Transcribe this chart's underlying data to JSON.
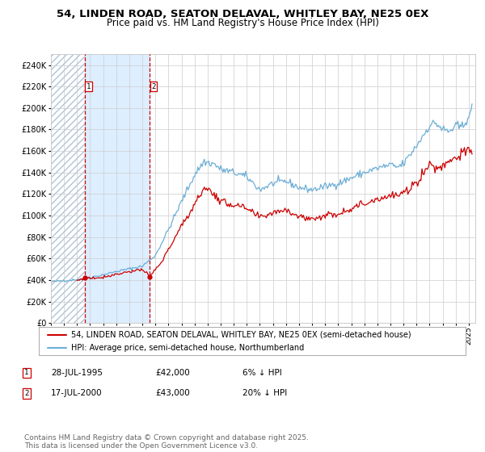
{
  "title": "54, LINDEN ROAD, SEATON DELAVAL, WHITLEY BAY, NE25 0EX",
  "subtitle": "Price paid vs. HM Land Registry's House Price Index (HPI)",
  "hpi_label": "HPI: Average price, semi-detached house, Northumberland",
  "price_label": "54, LINDEN ROAD, SEATON DELAVAL, WHITLEY BAY, NE25 0EX (semi-detached house)",
  "transactions": [
    {
      "num": 1,
      "date": "28-JUL-1995",
      "price": 42000,
      "pct": "6%",
      "dir": "↓"
    },
    {
      "num": 2,
      "date": "17-JUL-2000",
      "price": 43000,
      "pct": "20%",
      "dir": "↓"
    }
  ],
  "trans_dates_decimal": [
    1995.57,
    2000.54
  ],
  "trans_prices": [
    42000,
    43000
  ],
  "xlim": [
    1993.0,
    2025.5
  ],
  "ylim": [
    0,
    250000
  ],
  "yticks": [
    0,
    20000,
    40000,
    60000,
    80000,
    100000,
    120000,
    140000,
    160000,
    180000,
    200000,
    220000,
    240000
  ],
  "hpi_color": "#6baed6",
  "price_color": "#cc0000",
  "vline_color": "#cc0000",
  "shade_color": "#ddeeff",
  "hatch_color": "#c8d8e8",
  "grid_color": "#cccccc",
  "bg_color": "#ffffff",
  "footnote": "Contains HM Land Registry data © Crown copyright and database right 2025.\nThis data is licensed under the Open Government Licence v3.0.",
  "title_fontsize": 9.5,
  "subtitle_fontsize": 8.5,
  "axis_fontsize": 7,
  "legend_fontsize": 7.5,
  "note_fontsize": 6.5
}
